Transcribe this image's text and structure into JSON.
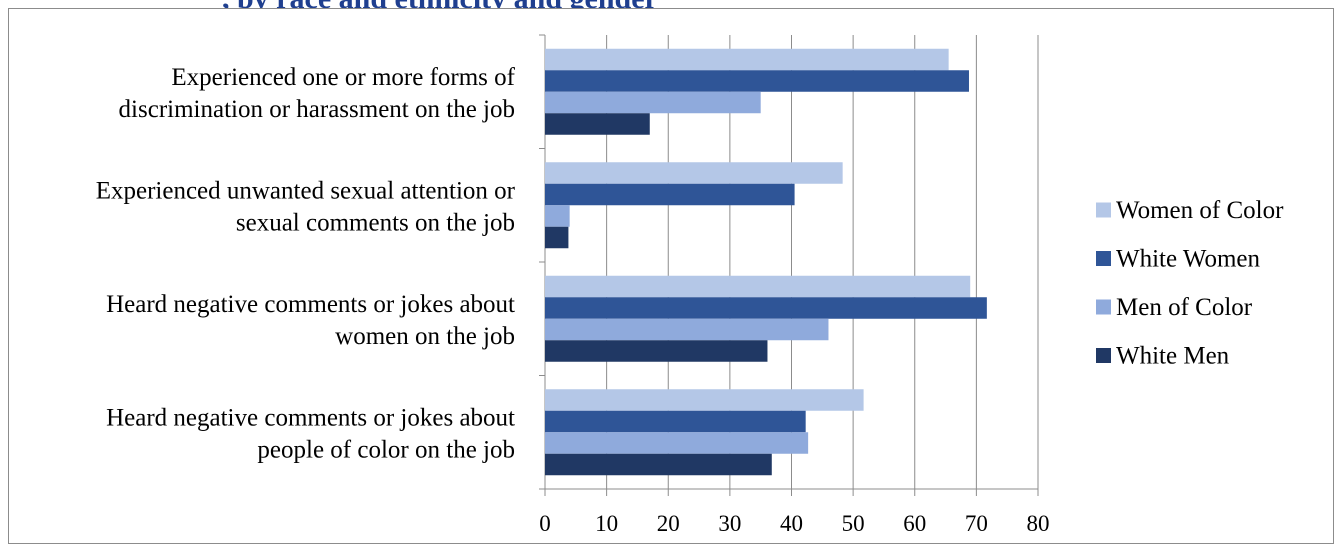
{
  "title": ", by race and ethnicity and gender",
  "chart_data": {
    "type": "bar",
    "orientation": "horizontal",
    "categories": [
      "Experienced one or more forms of discrimination or harassment on the job",
      "Experienced unwanted sexual attention or sexual comments on the job",
      "Heard negative comments or jokes about women on the job",
      "Heard negative comments or jokes about people of color on the job"
    ],
    "category_lines": [
      [
        "Experienced one or more forms of",
        "discrimination or harassment on the job"
      ],
      [
        "Experienced unwanted sexual attention or",
        "sexual comments on the job"
      ],
      [
        "Heard negative comments or jokes about",
        "women on the job"
      ],
      [
        "Heard negative comments or jokes about",
        "people of color on the job"
      ]
    ],
    "series": [
      {
        "name": "Women of Color",
        "color": "#b4c7e7",
        "values": [
          65.5,
          48.3,
          69.0,
          51.7
        ]
      },
      {
        "name": "White Women",
        "color": "#2f5597",
        "values": [
          68.8,
          40.5,
          71.7,
          42.3
        ]
      },
      {
        "name": "Men of Color",
        "color": "#8faadc",
        "values": [
          35.0,
          4.0,
          46.0,
          42.7
        ]
      },
      {
        "name": "White Men",
        "color": "#203864",
        "values": [
          17.0,
          3.8,
          36.1,
          36.8
        ]
      }
    ],
    "xlim": [
      0,
      80
    ],
    "xticks": [
      0,
      10,
      20,
      30,
      40,
      50,
      60,
      70,
      80
    ],
    "grid": true,
    "legend_position": "right"
  }
}
